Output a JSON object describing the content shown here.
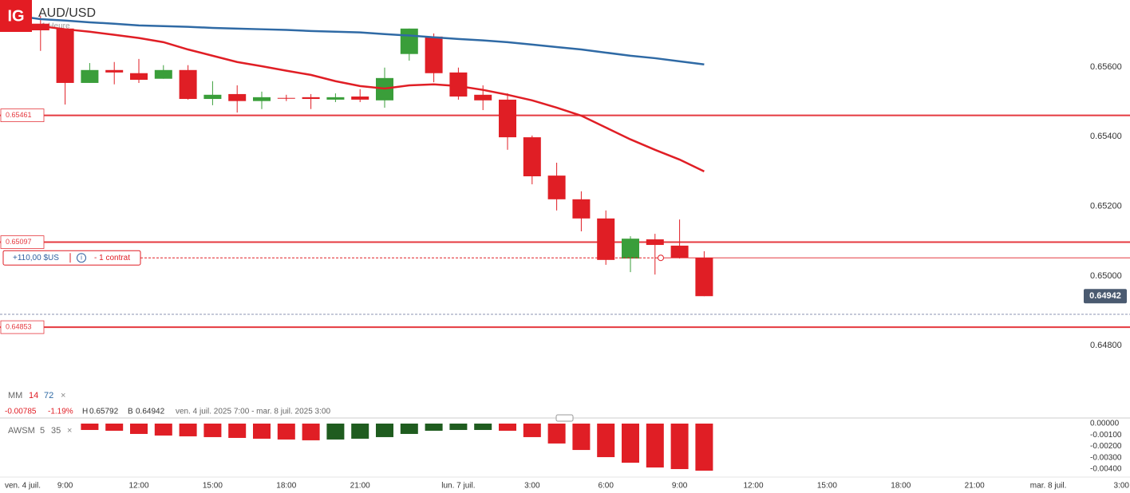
{
  "header": {
    "logo": "IG",
    "symbol": "AUD/USD",
    "interval": "1 Heure"
  },
  "chart_data": [
    {
      "type": "candlestick",
      "categories": [
        "ven. 4 juil.",
        null,
        "9:00",
        null,
        null,
        "12:00",
        null,
        null,
        "15:00",
        null,
        null,
        "18:00",
        null,
        null,
        "21:00",
        null,
        null,
        null,
        "lun. 7 juil.",
        null,
        null,
        "3:00",
        null,
        null,
        "6:00",
        null,
        null,
        "9:00",
        null,
        null,
        "12:00",
        null,
        null,
        "15:00",
        null,
        null,
        "18:00",
        null,
        null,
        "21:00",
        null,
        null,
        "mar. 8 juil.",
        null,
        null,
        "3:00"
      ],
      "open": [
        null,
        0.65724,
        0.6571,
        0.65554,
        0.65591,
        0.65582,
        0.65566,
        0.65591,
        0.65508,
        0.65522,
        0.65502,
        0.65511,
        0.65513,
        0.65506,
        0.65515,
        0.65504,
        0.65637,
        0.65687,
        0.65584,
        0.6552,
        0.65506,
        0.65398,
        0.65288,
        0.6522,
        0.65165,
        0.6505,
        0.65105,
        0.65087,
        0.65052,
        null,
        null,
        null,
        null,
        null,
        null,
        null,
        null,
        null,
        null,
        null,
        null,
        null,
        null,
        null,
        null,
        null
      ],
      "high": [
        null,
        0.65747,
        0.6571,
        0.65611,
        0.65614,
        0.65623,
        0.65605,
        0.65605,
        0.65559,
        0.65547,
        0.65529,
        0.6552,
        0.65522,
        0.65524,
        0.65536,
        0.65598,
        0.6571,
        0.65696,
        0.65598,
        0.65547,
        0.65524,
        0.65403,
        0.65325,
        0.65243,
        0.65188,
        0.65114,
        0.65121,
        0.65162,
        0.65071,
        null,
        null,
        null,
        null,
        null,
        null,
        null,
        null,
        null,
        null,
        null,
        null,
        null,
        null,
        null,
        null,
        null
      ],
      "low": [
        null,
        0.65646,
        0.65492,
        0.65554,
        0.6555,
        0.65554,
        0.65566,
        0.65506,
        0.6549,
        0.65469,
        0.65479,
        0.65502,
        0.65479,
        0.65499,
        0.65499,
        0.65483,
        0.65618,
        0.65556,
        0.65506,
        0.65476,
        0.65362,
        0.65263,
        0.65188,
        0.65128,
        0.65032,
        0.65011,
        0.65004,
        0.6505,
        0.64942,
        null,
        null,
        null,
        null,
        null,
        null,
        null,
        null,
        null,
        null,
        null,
        null,
        null,
        null,
        null,
        null,
        null
      ],
      "close": [
        null,
        0.65705,
        0.65554,
        0.65591,
        0.65584,
        0.65563,
        0.65591,
        0.65508,
        0.6552,
        0.65502,
        0.65513,
        0.65511,
        0.65508,
        0.65513,
        0.65506,
        0.65568,
        0.6571,
        0.65582,
        0.65515,
        0.65504,
        0.65398,
        0.65286,
        0.6522,
        0.65165,
        0.65046,
        0.65107,
        0.65089,
        0.65052,
        0.64942,
        null,
        null,
        null,
        null,
        null,
        null,
        null,
        null,
        null,
        null,
        null,
        null,
        null,
        null,
        null,
        null,
        null
      ],
      "up_color": "#3a9e3a",
      "down_color": "#e01e25",
      "moving_averages": [
        {
          "label": "MM",
          "period": 14,
          "color": "#e01e25",
          "values": [
            0.65726,
            0.65717,
            0.65708,
            0.65701,
            0.65692,
            0.65683,
            0.65671,
            0.6565,
            0.65632,
            0.65614,
            0.65602,
            0.65589,
            0.65577,
            0.65559,
            0.65545,
            0.65538,
            0.65547,
            0.6555,
            0.65545,
            0.65534,
            0.6552,
            0.65504,
            0.65483,
            0.6546,
            0.65426,
            0.65392,
            0.65362,
            0.65334,
            0.653,
            null,
            null,
            null,
            null,
            null,
            null,
            null,
            null,
            null,
            null,
            null,
            null,
            null,
            null,
            null,
            null,
            null
          ]
        },
        {
          "period": 72,
          "color": "#2f6aa5",
          "values": [
            0.65747,
            0.65737,
            0.65733,
            0.65728,
            0.65724,
            0.65719,
            0.65717,
            0.65715,
            0.65712,
            0.6571,
            0.65708,
            0.65706,
            0.65703,
            0.65701,
            0.65699,
            0.65694,
            0.6569,
            0.65685,
            0.6568,
            0.65676,
            0.65671,
            0.65664,
            0.65657,
            0.6565,
            0.65641,
            0.65632,
            0.65625,
            0.65616,
            0.65607,
            null,
            null,
            null,
            null,
            null,
            null,
            null,
            null,
            null,
            null,
            null,
            null,
            null,
            null,
            null,
            null,
            null
          ]
        }
      ],
      "legend_close": "×",
      "levels": [
        0.65461,
        0.65097,
        0.64853
      ],
      "level_color": "#e5393f",
      "last_price": 0.64942,
      "bid_line": 0.6489,
      "position": {
        "price": 0.65052,
        "pnl": "+110,00 $US",
        "info_icon": "i",
        "size": "- 1 contrat"
      },
      "info": {
        "change": -0.00785,
        "change_pct": {
          "value": -1.19,
          "label": "-1.19%"
        },
        "high_label": "H",
        "high": 0.65792,
        "low_label": "B",
        "low": 0.64942,
        "range": "ven. 4 juil. 2025 7:00 - mar. 8 juil. 2025 3:00"
      },
      "ylim": [
        0.64693,
        0.65792
      ],
      "yticks": [
        {
          "value": 0.656,
          "label": "0.65600"
        },
        {
          "value": 0.654,
          "label": "0.65400"
        },
        {
          "value": 0.652,
          "label": "0.65200"
        },
        {
          "value": 0.65,
          "label": "0.65000"
        },
        {
          "value": 0.648,
          "label": "0.64800"
        }
      ]
    },
    {
      "type": "bar",
      "name": "AWSM",
      "params": [
        5,
        35
      ],
      "legend_close": "×",
      "values": [
        null,
        null,
        null,
        -0.00056,
        -0.00063,
        -0.00091,
        -0.00105,
        -0.00112,
        -0.00119,
        -0.00126,
        -0.00133,
        -0.0014,
        -0.00147,
        -0.0014,
        -0.00133,
        -0.00119,
        -0.00091,
        -0.00063,
        -0.00056,
        -0.00056,
        -0.00063,
        -0.00119,
        -0.00175,
        -0.00232,
        -0.00295,
        -0.00344,
        -0.00386,
        -0.004,
        -0.00414,
        null,
        null,
        null,
        null,
        null,
        null,
        null,
        null,
        null,
        null,
        null,
        null,
        null,
        null,
        null,
        null,
        null
      ],
      "colors": [
        null,
        null,
        null,
        "#e01e25",
        "#e01e25",
        "#e01e25",
        "#e01e25",
        "#e01e25",
        "#e01e25",
        "#e01e25",
        "#e01e25",
        "#e01e25",
        "#e01e25",
        "#1f5c1f",
        "#1f5c1f",
        "#1f5c1f",
        "#1f5c1f",
        "#1f5c1f",
        "#1f5c1f",
        "#1f5c1f",
        "#e01e25",
        "#e01e25",
        "#e01e25",
        "#e01e25",
        "#e01e25",
        "#e01e25",
        "#e01e25",
        "#e01e25",
        "#e01e25",
        null,
        null,
        null,
        null,
        null,
        null,
        null,
        null,
        null,
        null,
        null,
        null,
        null,
        null,
        null,
        null,
        null
      ],
      "ylim": [
        -0.00463,
        0.00049
      ],
      "yticks": [
        {
          "value": 0,
          "label": "0.00000"
        },
        {
          "value": -0.001,
          "label": "-0.00100"
        },
        {
          "value": -0.002,
          "label": "-0.00200"
        },
        {
          "value": -0.003,
          "label": "-0.00300"
        },
        {
          "value": -0.004,
          "label": "-0.00400"
        }
      ]
    }
  ]
}
